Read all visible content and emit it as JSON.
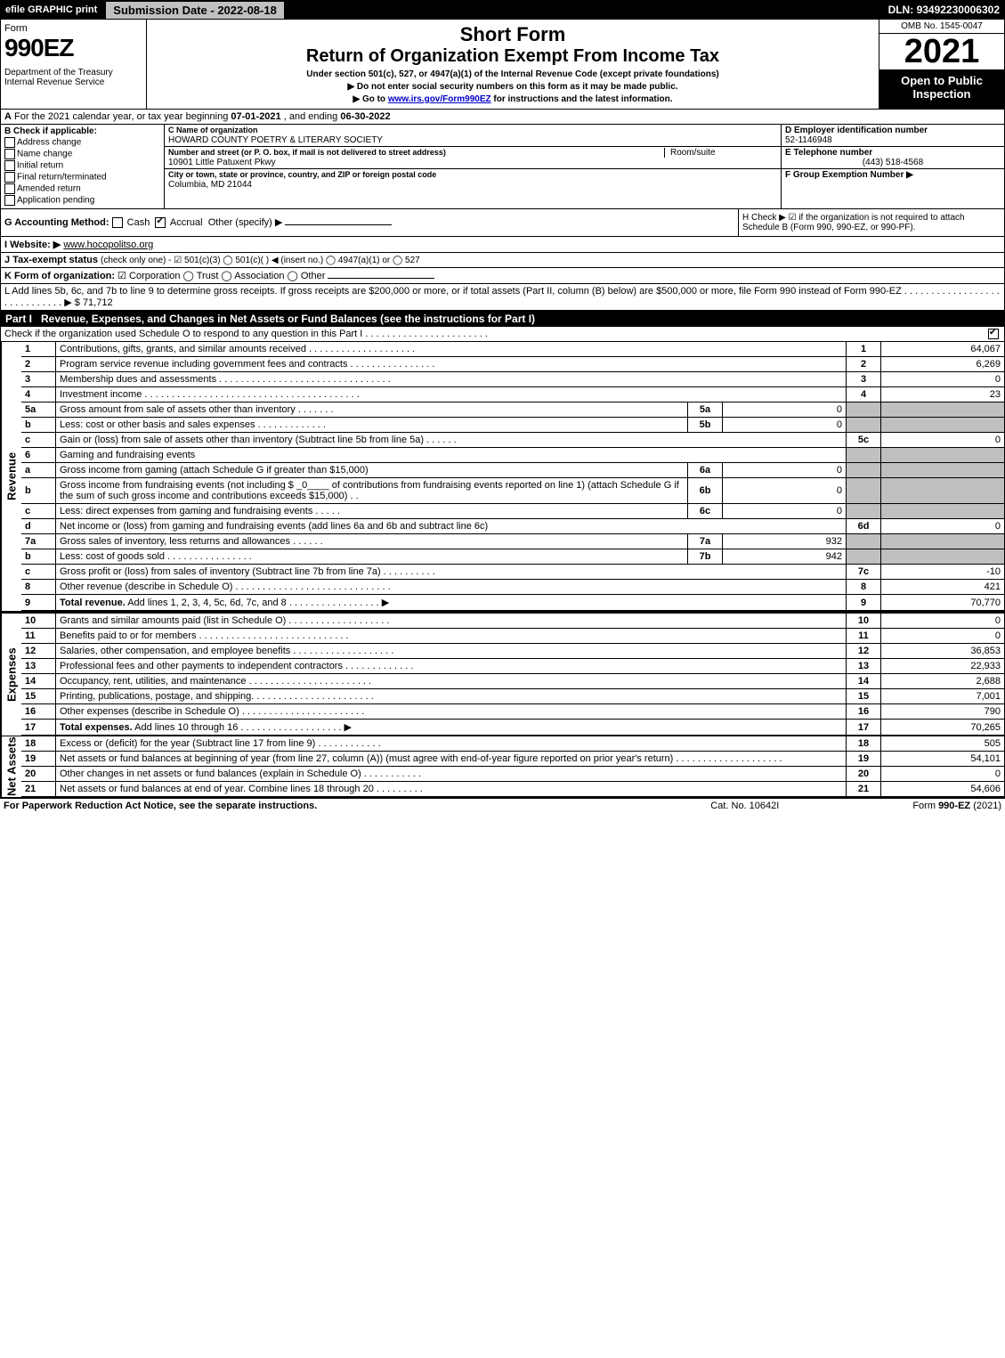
{
  "top_bar": {
    "efile_label": "efile GRAPHIC print",
    "submission_prefix": "Submission Date - ",
    "submission_date": "2022-08-18",
    "dln_prefix": "DLN: ",
    "dln": "93492230006302"
  },
  "header": {
    "form_label": "Form",
    "form_number": "990EZ",
    "department": "Department of the Treasury\nInternal Revenue Service",
    "short_form": "Short Form",
    "title": "Return of Organization Exempt From Income Tax",
    "subtitle1": "Under section 501(c), 527, or 4947(a)(1) of the Internal Revenue Code (except private foundations)",
    "subtitle2_prefix": "▶ Do not enter social security numbers on this form as it may be made public.",
    "subtitle3_prefix": "▶ Go to ",
    "subtitle3_link": "www.irs.gov/Form990EZ",
    "subtitle3_suffix": " for instructions and the latest information.",
    "omb": "OMB No. 1545-0047",
    "year": "2021",
    "inspection": "Open to Public Inspection"
  },
  "line_a": {
    "prefix": "A",
    "text_a": "  For the 2021 calendar year, or tax year beginning ",
    "date1": "07-01-2021",
    "mid": " , and ending ",
    "date2": "06-30-2022"
  },
  "section_b": {
    "label": "B  Check if applicable:",
    "items": [
      {
        "label": "Address change",
        "checked": false
      },
      {
        "label": "Name change",
        "checked": false
      },
      {
        "label": "Initial return",
        "checked": false
      },
      {
        "label": "Final return/terminated",
        "checked": false
      },
      {
        "label": "Amended return",
        "checked": false
      },
      {
        "label": "Application pending",
        "checked": false
      }
    ]
  },
  "section_c": {
    "name_label": "C Name of organization",
    "name_value": "HOWARD COUNTY POETRY & LITERARY SOCIETY",
    "street_label": "Number and street (or P. O. box, if mail is not delivered to street address)",
    "street_value": "10901 Little Patuxent Pkwy",
    "room_label": "Room/suite",
    "city_label": "City or town, state or province, country, and ZIP or foreign postal code",
    "city_value": "Columbia, MD  21044"
  },
  "section_def": {
    "d_label": "D Employer identification number",
    "d_value": "52-1146948",
    "e_label": "E Telephone number",
    "e_value": "(443) 518-4568",
    "f_label": "F Group Exemption Number  ▶"
  },
  "section_g": {
    "g_prefix": "G Accounting Method:   ",
    "cash": "Cash",
    "accrual": "Accrual",
    "other": "Other (specify) ▶",
    "accrual_checked": true,
    "h_text": "H  Check ▶ ☑ if the organization is not required to attach Schedule B (Form 990, 990-EZ, or 990-PF)."
  },
  "section_i": {
    "prefix": "I Website: ▶",
    "value": "www.hocopolitso.org"
  },
  "section_j": {
    "prefix": "J Tax-exempt status ",
    "detail": "(check only one) - ☑ 501(c)(3)  ◯ 501(c)(  ) ◀ (insert no.)  ◯ 4947(a)(1) or  ◯ 527"
  },
  "section_k": {
    "prefix": "K Form of organization:  ",
    "options": "☑ Corporation   ◯ Trust   ◯ Association   ◯ Other"
  },
  "section_l": {
    "text": "L Add lines 5b, 6c, and 7b to line 9 to determine gross receipts. If gross receipts are $200,000 or more, or if total assets (Part II, column (B) below) are $500,000 or more, file Form 990 instead of Form 990-EZ . . . . . . . . . . . . . . . . . . . . . . . . . . . . .  ▶ $ ",
    "amount": "71,712"
  },
  "part1": {
    "label": "Part I",
    "title": "Revenue, Expenses, and Changes in Net Assets or Fund Balances (see the instructions for Part I)",
    "sub": "Check if the organization used Schedule O to respond to any question in this Part I . . . . . . . . . . . . . . . . . . . . . . .",
    "sub_checked": true
  },
  "revenue": {
    "side": "Revenue",
    "rows": [
      {
        "n": "1",
        "desc": "Contributions, gifts, grants, and similar amounts received . . . . . . . . . . . . . . . . . . . .",
        "rn": "1",
        "rv": "64,067"
      },
      {
        "n": "2",
        "desc": "Program service revenue including government fees and contracts . . . . . . . . . . . . . . . .",
        "rn": "2",
        "rv": "6,269"
      },
      {
        "n": "3",
        "desc": "Membership dues and assessments . . . . . . . . . . . . . . . . . . . . . . . . . . . . . . . .",
        "rn": "3",
        "rv": "0"
      },
      {
        "n": "4",
        "desc": "Investment income . . . . . . . . . . . . . . . . . . . . . . . . . . . . . . . . . . . . . . . .",
        "rn": "4",
        "rv": "23"
      },
      {
        "n": "5a",
        "desc": "Gross amount from sale of assets other than inventory . . . . . . .",
        "mn": "5a",
        "mv": "0",
        "rn": "",
        "rv": "",
        "grey": true
      },
      {
        "n": "b",
        "desc": "Less: cost or other basis and sales expenses . . . . . . . . . . . . .",
        "mn": "5b",
        "mv": "0",
        "rn": "",
        "rv": "",
        "grey": true
      },
      {
        "n": "c",
        "desc": "Gain or (loss) from sale of assets other than inventory (Subtract line 5b from line 5a) . . . . . .",
        "rn": "5c",
        "rv": "0"
      },
      {
        "n": "6",
        "desc": "Gaming and fundraising events",
        "rn": "",
        "rv": "",
        "grey": true
      },
      {
        "n": "a",
        "desc": "Gross income from gaming (attach Schedule G if greater than $15,000)",
        "mn": "6a",
        "mv": "0",
        "rn": "",
        "rv": "",
        "grey": true
      },
      {
        "n": "b",
        "desc": "Gross income from fundraising events (not including $ _0____ of contributions from fundraising events reported on line 1) (attach Schedule G if the sum of such gross income and contributions exceeds $15,000)   . .",
        "mn": "6b",
        "mv": "0",
        "rn": "",
        "rv": "",
        "grey": true
      },
      {
        "n": "c",
        "desc": "Less: direct expenses from gaming and fundraising events   . . . . .",
        "mn": "6c",
        "mv": "0",
        "rn": "",
        "rv": "",
        "grey": true
      },
      {
        "n": "d",
        "desc": "Net income or (loss) from gaming and fundraising events (add lines 6a and 6b and subtract line 6c)",
        "rn": "6d",
        "rv": "0"
      },
      {
        "n": "7a",
        "desc": "Gross sales of inventory, less returns and allowances . . . . . .",
        "mn": "7a",
        "mv": "932",
        "rn": "",
        "rv": "",
        "grey": true
      },
      {
        "n": "b",
        "desc": "Less: cost of goods sold   . . . . . . . . . . . . . . . .",
        "mn": "7b",
        "mv": "942",
        "rn": "",
        "rv": "",
        "grey": true
      },
      {
        "n": "c",
        "desc": "Gross profit or (loss) from sales of inventory (Subtract line 7b from line 7a) . . . . . . . . . .",
        "rn": "7c",
        "rv": "-10"
      },
      {
        "n": "8",
        "desc": "Other revenue (describe in Schedule O) . . . . . . . . . . . . . . . . . . . . . . . . . . . . .",
        "rn": "8",
        "rv": "421"
      },
      {
        "n": "9",
        "desc": "Total revenue. Add lines 1, 2, 3, 4, 5c, 6d, 7c, and 8  . . . . . . . . . . . . . . . . .   ▶",
        "rn": "9",
        "rv": "70,770",
        "bold": true
      }
    ]
  },
  "expenses": {
    "side": "Expenses",
    "rows": [
      {
        "n": "10",
        "desc": "Grants and similar amounts paid (list in Schedule O) . . . . . . . . . . . . . . . . . . .",
        "rn": "10",
        "rv": "0"
      },
      {
        "n": "11",
        "desc": "Benefits paid to or for members   . . . . . . . . . . . . . . . . . . . . . . . . . . . .",
        "rn": "11",
        "rv": "0"
      },
      {
        "n": "12",
        "desc": "Salaries, other compensation, and employee benefits . . . . . . . . . . . . . . . . . . .",
        "rn": "12",
        "rv": "36,853"
      },
      {
        "n": "13",
        "desc": "Professional fees and other payments to independent contractors . . . . . . . . . . . . .",
        "rn": "13",
        "rv": "22,933"
      },
      {
        "n": "14",
        "desc": "Occupancy, rent, utilities, and maintenance . . . . . . . . . . . . . . . . . . . . . . .",
        "rn": "14",
        "rv": "2,688"
      },
      {
        "n": "15",
        "desc": "Printing, publications, postage, and shipping. . . . . . . . . . . . . . . . . . . . . . .",
        "rn": "15",
        "rv": "7,001"
      },
      {
        "n": "16",
        "desc": "Other expenses (describe in Schedule O)     . . . . . . . . . . . . . . . . . . . . . . .",
        "rn": "16",
        "rv": "790"
      },
      {
        "n": "17",
        "desc": "Total expenses. Add lines 10 through 16    . . . . . . . . . . . . . . . . . . .   ▶",
        "rn": "17",
        "rv": "70,265",
        "bold": true
      }
    ]
  },
  "netassets": {
    "side": "Net Assets",
    "rows": [
      {
        "n": "18",
        "desc": "Excess or (deficit) for the year (Subtract line 17 from line 9)     . . . . . . . . . . . .",
        "rn": "18",
        "rv": "505"
      },
      {
        "n": "19",
        "desc": "Net assets or fund balances at beginning of year (from line 27, column (A)) (must agree with end-of-year figure reported on prior year's return) . . . . . . . . . . . . . . . . . . . .",
        "rn": "19",
        "rv": "54,101"
      },
      {
        "n": "20",
        "desc": "Other changes in net assets or fund balances (explain in Schedule O) . . . . . . . . . . .",
        "rn": "20",
        "rv": "0"
      },
      {
        "n": "21",
        "desc": "Net assets or fund balances at end of year. Combine lines 18 through 20 . . . . . . . . .",
        "rn": "21",
        "rv": "54,606"
      }
    ]
  },
  "footer": {
    "left": "For Paperwork Reduction Act Notice, see the separate instructions.",
    "mid": "Cat. No. 10642I",
    "right_prefix": "Form ",
    "right_form": "990-EZ",
    "right_suffix": " (2021)"
  }
}
